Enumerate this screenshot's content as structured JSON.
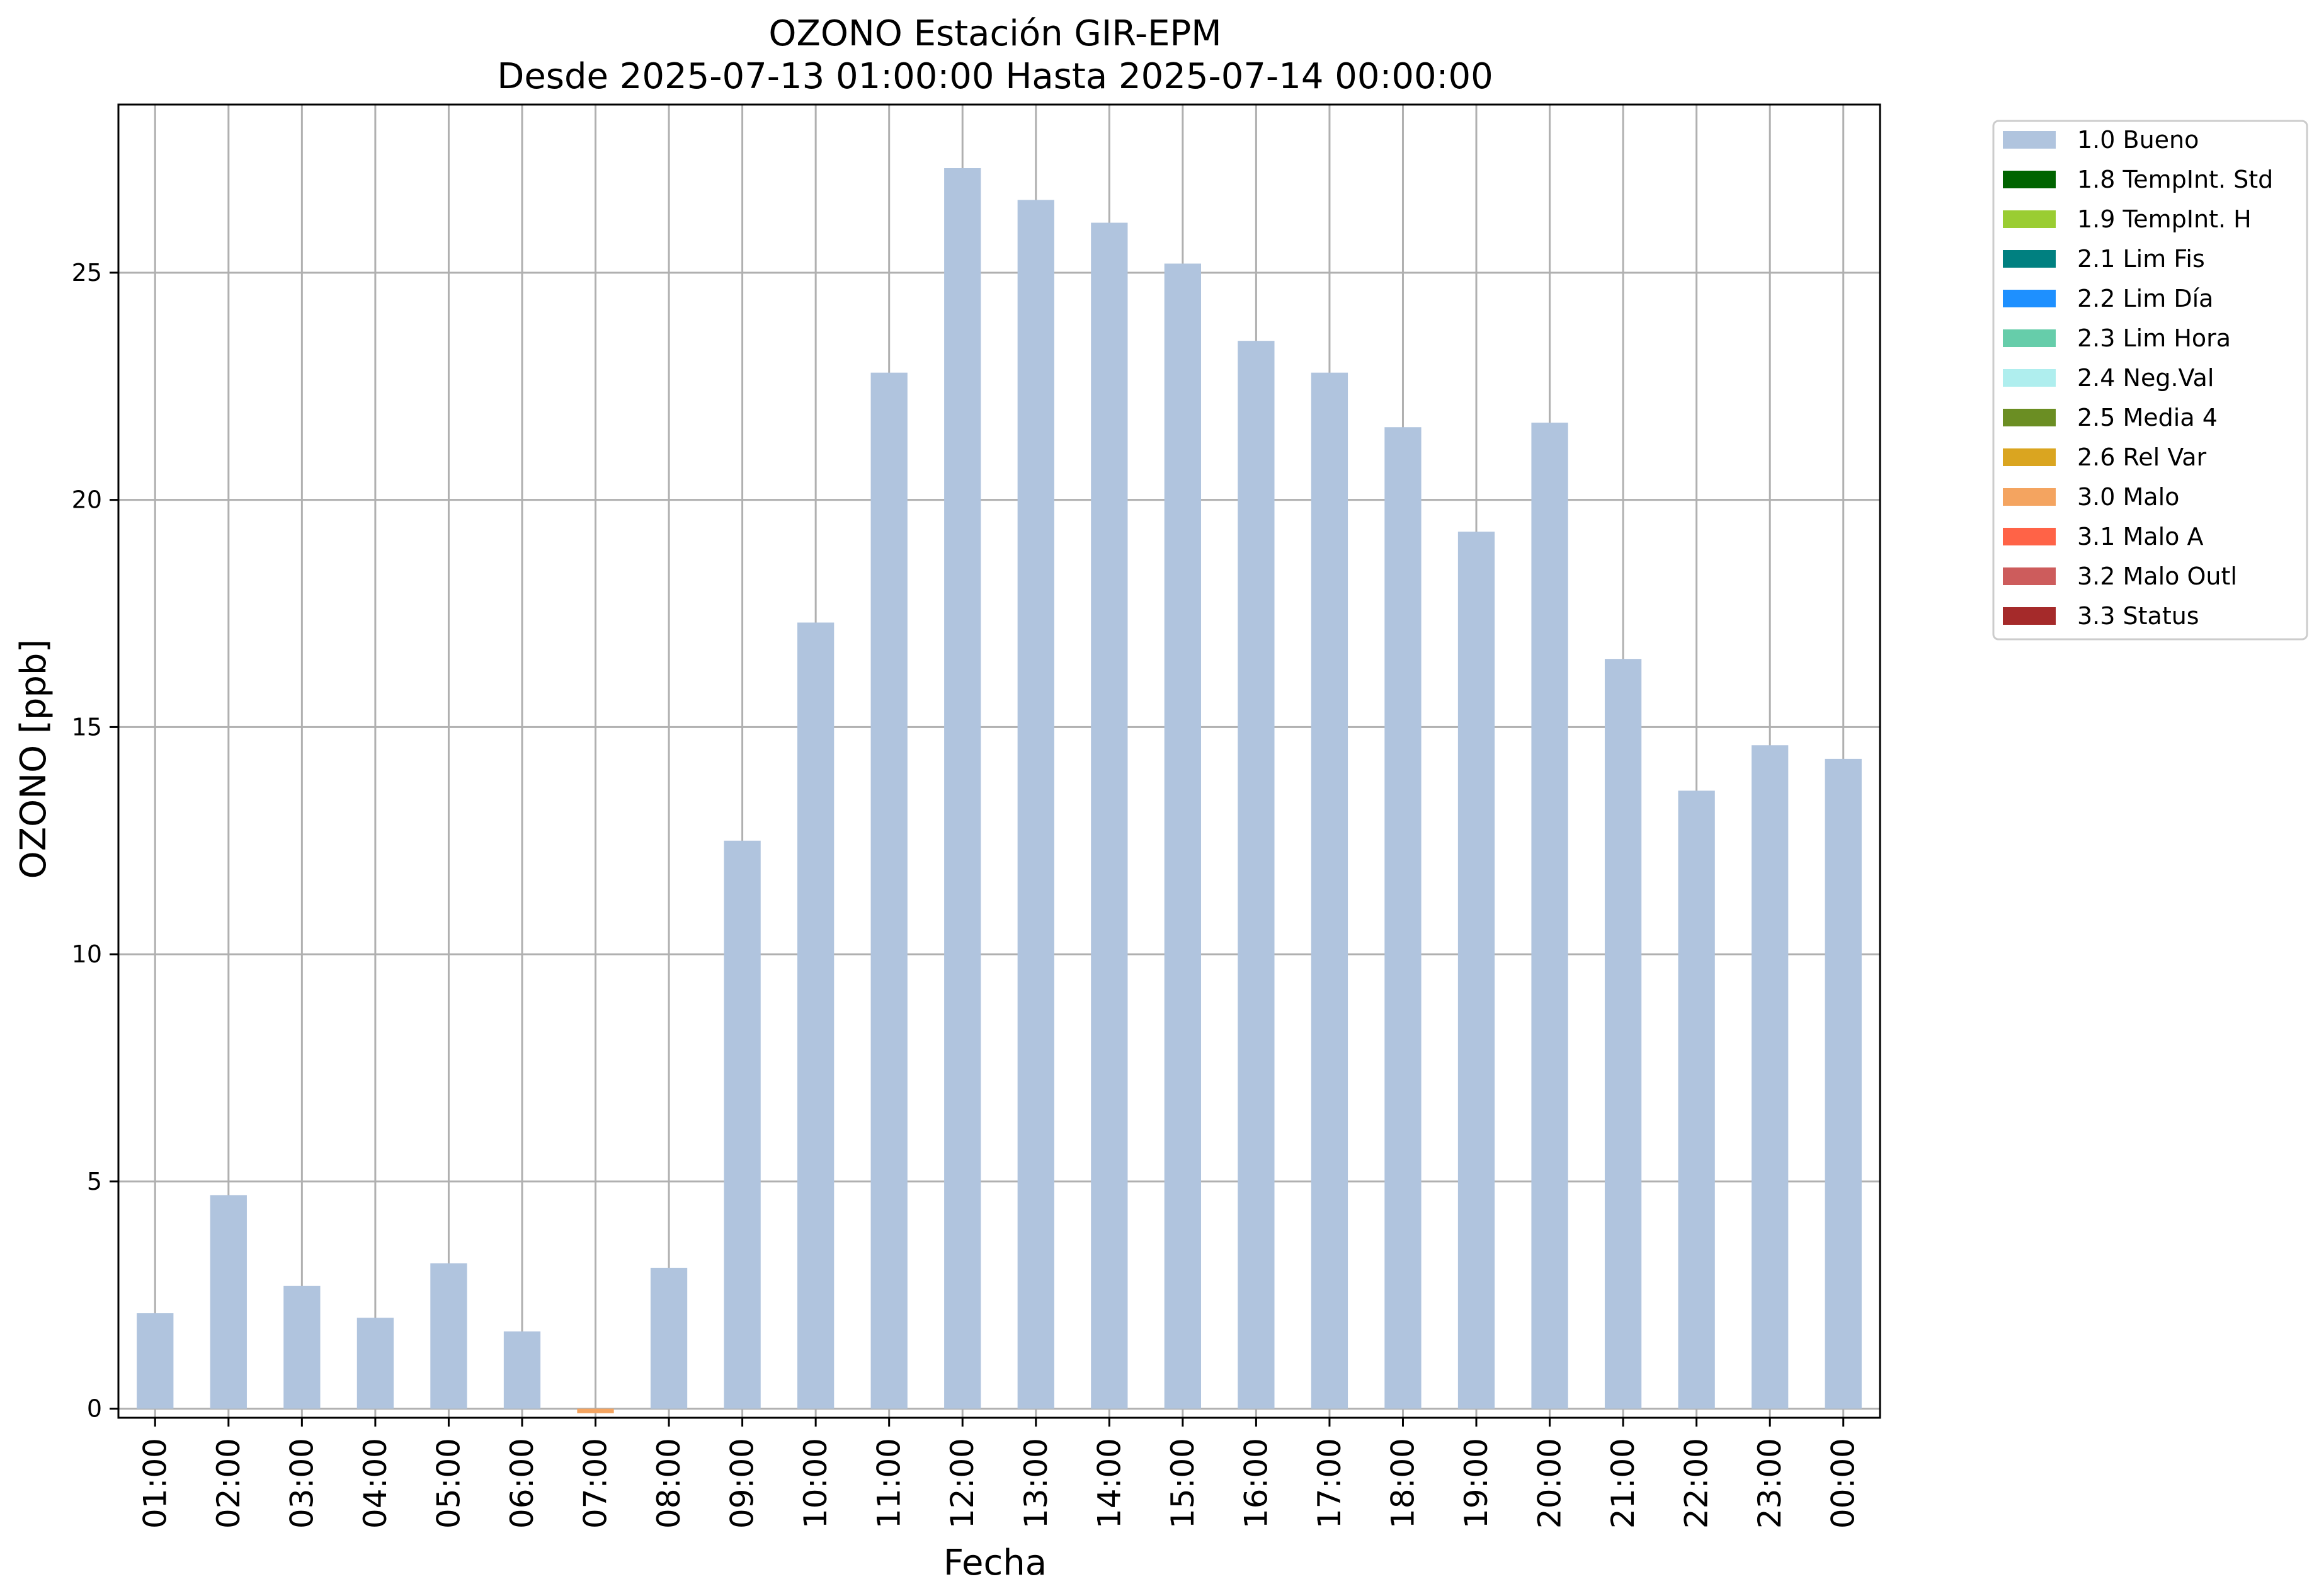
{
  "chart_data": {
    "type": "bar",
    "title": "OZONO Estación GIR-EPM",
    "subtitle": "Desde 2025-07-13 01:00:00 Hasta 2025-07-14 00:00:00",
    "xlabel": "Fecha",
    "ylabel": "OZONO [ppb]",
    "ylim": [
      -0.2,
      28.7
    ],
    "yticks": [
      0,
      5,
      10,
      15,
      20,
      25
    ],
    "grid": true,
    "legend_position": "outside-top-right",
    "categories": [
      "01:00",
      "02:00",
      "03:00",
      "04:00",
      "05:00",
      "06:00",
      "07:00",
      "08:00",
      "09:00",
      "10:00",
      "11:00",
      "12:00",
      "13:00",
      "14:00",
      "15:00",
      "16:00",
      "17:00",
      "18:00",
      "19:00",
      "20:00",
      "21:00",
      "22:00",
      "23:00",
      "00:00"
    ],
    "series": [
      {
        "name": "1.0 Bueno",
        "color": "#b0c4de",
        "values": [
          2.1,
          4.7,
          2.7,
          2.0,
          3.2,
          1.7,
          null,
          3.1,
          12.5,
          17.3,
          22.8,
          27.3,
          26.6,
          26.1,
          25.2,
          23.5,
          22.8,
          21.6,
          19.3,
          21.7,
          16.5,
          13.6,
          14.6,
          14.3
        ]
      },
      {
        "name": "3.0 Malo",
        "color": "#f4a460",
        "values": [
          null,
          null,
          null,
          null,
          null,
          null,
          -0.1,
          null,
          null,
          null,
          null,
          null,
          null,
          null,
          null,
          null,
          null,
          null,
          null,
          null,
          null,
          null,
          null,
          null
        ]
      }
    ],
    "legend": [
      {
        "label": "1.0 Bueno",
        "color": "#b0c4de"
      },
      {
        "label": "1.8 TempInt. Std",
        "color": "#006400"
      },
      {
        "label": "1.9 TempInt. H",
        "color": "#9acd32"
      },
      {
        "label": "2.1 Lim Fis",
        "color": "#008080"
      },
      {
        "label": "2.2 Lim Día",
        "color": "#1e90ff"
      },
      {
        "label": "2.3 Lim Hora",
        "color": "#66cdaa"
      },
      {
        "label": "2.4 Neg.Val",
        "color": "#afeeee"
      },
      {
        "label": "2.5 Media 4",
        "color": "#6b8e23"
      },
      {
        "label": "2.6 Rel Var",
        "color": "#daa520"
      },
      {
        "label": "3.0 Malo",
        "color": "#f4a460"
      },
      {
        "label": "3.1 Malo A",
        "color": "#ff6347"
      },
      {
        "label": "3.2 Malo Outl",
        "color": "#cd5c5c"
      },
      {
        "label": "3.3 Status",
        "color": "#a52a2a"
      }
    ]
  }
}
